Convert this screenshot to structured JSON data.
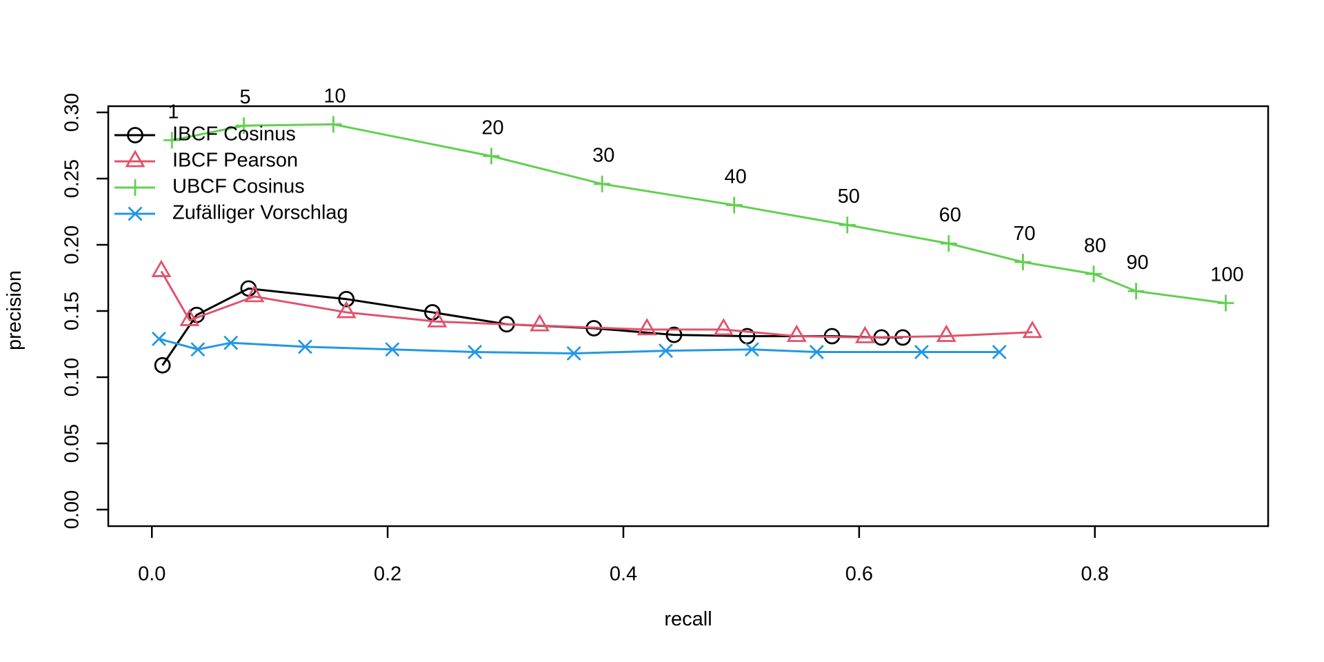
{
  "figure": {
    "background": "#ffffff",
    "text_color": "#000000"
  },
  "chart_data": {
    "type": "line",
    "title": "",
    "xlabel": "recall",
    "ylabel": "precision",
    "grid": false,
    "legend_position": "top-left",
    "xlim": [
      -0.037,
      0.947
    ],
    "ylim": [
      -0.0125,
      0.3047
    ],
    "x_ticks": {
      "values": [
        0.0,
        0.2,
        0.4,
        0.6,
        0.8
      ],
      "labels": [
        "0.0",
        "0.2",
        "0.4",
        "0.6",
        "0.8"
      ]
    },
    "y_ticks": {
      "values": [
        0.0,
        0.05,
        0.1,
        0.15,
        0.2,
        0.25,
        0.3
      ],
      "labels": [
        "0.00",
        "0.05",
        "0.10",
        "0.15",
        "0.20",
        "0.25",
        "0.30"
      ]
    },
    "series": [
      {
        "name": "IBCF Cosinus",
        "color": "#000000",
        "marker": "circle",
        "points": [
          [
            0.009,
            0.109
          ],
          [
            0.038,
            0.147
          ],
          [
            0.082,
            0.167
          ],
          [
            0.165,
            0.159
          ],
          [
            0.238,
            0.149
          ],
          [
            0.301,
            0.14
          ],
          [
            0.375,
            0.137
          ],
          [
            0.443,
            0.132
          ],
          [
            0.505,
            0.131
          ],
          [
            0.577,
            0.131
          ],
          [
            0.619,
            0.13
          ],
          [
            0.637,
            0.13
          ]
        ]
      },
      {
        "name": "IBCF Pearson",
        "color": "#DF536B",
        "marker": "triangle",
        "points": [
          [
            0.008,
            0.18
          ],
          [
            0.032,
            0.143
          ],
          [
            0.087,
            0.161
          ],
          [
            0.165,
            0.149
          ],
          [
            0.242,
            0.142
          ],
          [
            0.329,
            0.139
          ],
          [
            0.42,
            0.136
          ],
          [
            0.485,
            0.136
          ],
          [
            0.547,
            0.131
          ],
          [
            0.605,
            0.13
          ],
          [
            0.674,
            0.131
          ],
          [
            0.747,
            0.134
          ]
        ]
      },
      {
        "name": "UBCF Cosinus",
        "color": "#61D04F",
        "marker": "plus",
        "point_labels": [
          "1",
          "5",
          "10",
          "20",
          "30",
          "40",
          "50",
          "60",
          "70",
          "80",
          "90",
          "100"
        ],
        "points": [
          [
            0.017,
            0.279
          ],
          [
            0.078,
            0.29
          ],
          [
            0.154,
            0.291
          ],
          [
            0.288,
            0.267
          ],
          [
            0.382,
            0.246
          ],
          [
            0.494,
            0.23
          ],
          [
            0.59,
            0.215
          ],
          [
            0.676,
            0.201
          ],
          [
            0.739,
            0.187
          ],
          [
            0.799,
            0.178
          ],
          [
            0.835,
            0.165
          ],
          [
            0.911,
            0.156
          ]
        ]
      },
      {
        "name": "Zufälliger Vorschlag",
        "color": "#2297E6",
        "marker": "x",
        "points": [
          [
            0.006,
            0.129
          ],
          [
            0.039,
            0.121
          ],
          [
            0.067,
            0.126
          ],
          [
            0.13,
            0.123
          ],
          [
            0.204,
            0.121
          ],
          [
            0.274,
            0.119
          ],
          [
            0.358,
            0.118
          ],
          [
            0.436,
            0.12
          ],
          [
            0.509,
            0.121
          ],
          [
            0.564,
            0.119
          ],
          [
            0.653,
            0.119
          ],
          [
            0.719,
            0.119
          ]
        ]
      }
    ]
  }
}
